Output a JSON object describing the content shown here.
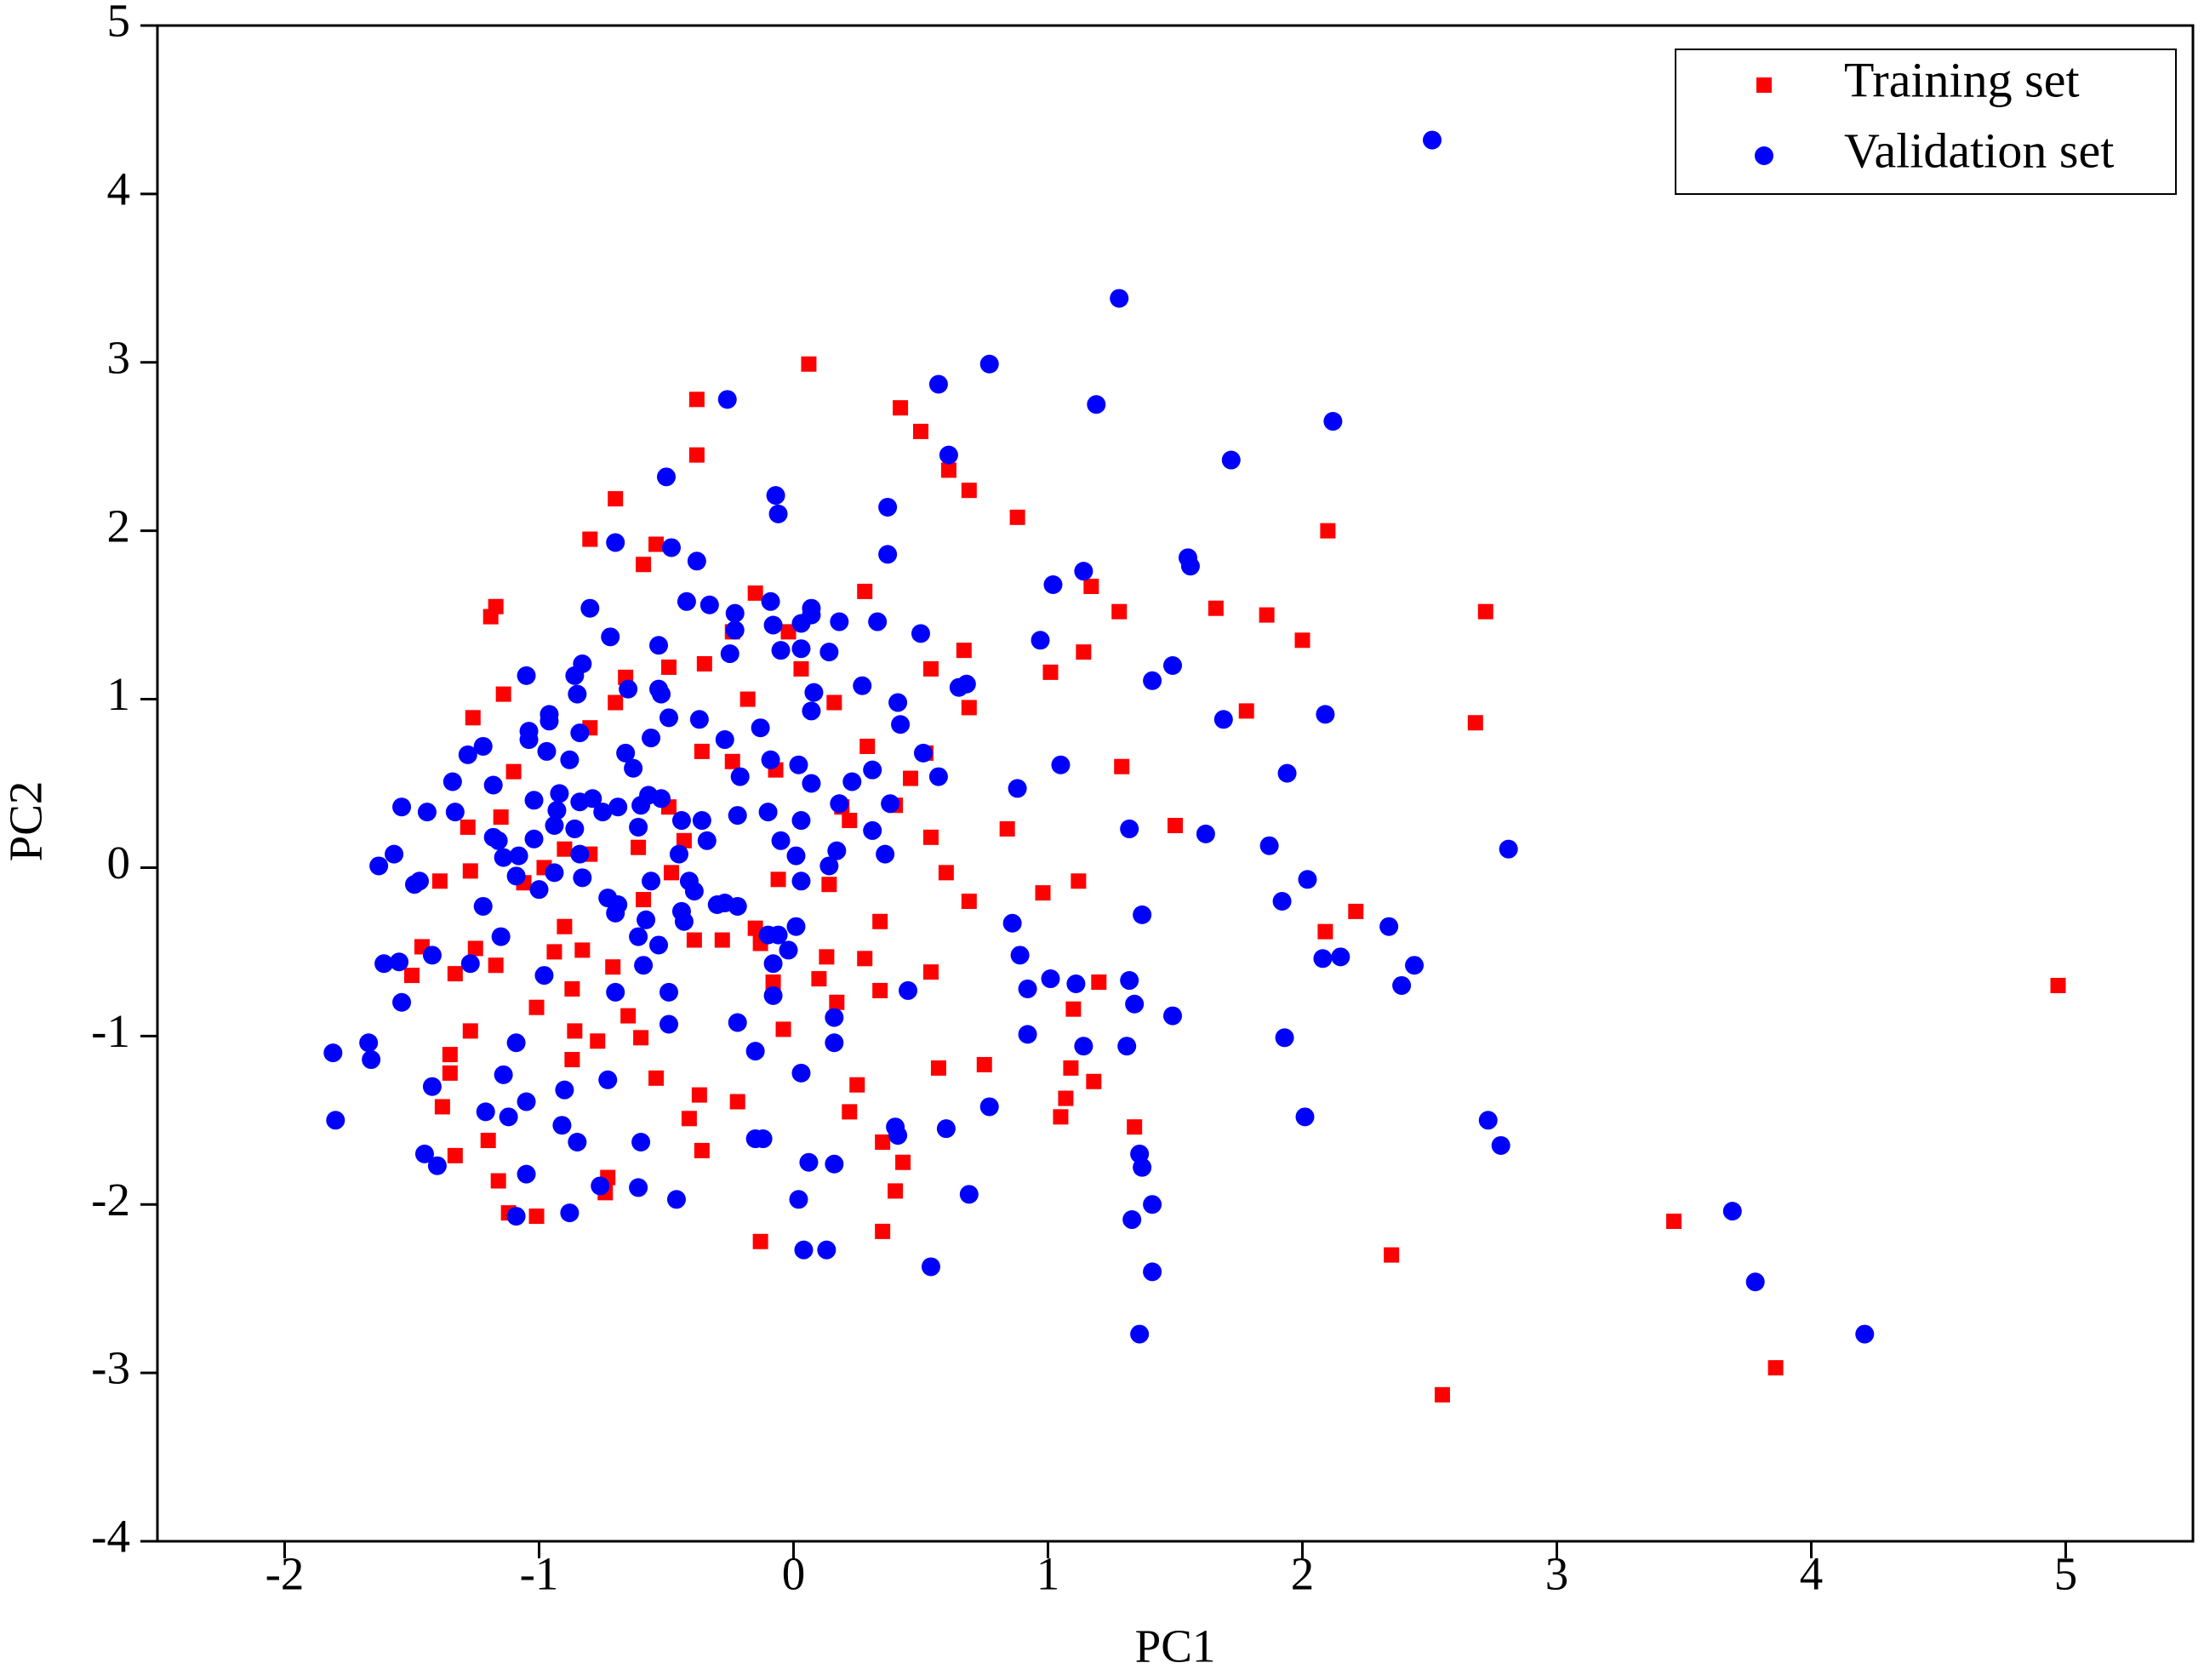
{
  "chart_data": {
    "type": "scatter",
    "x_label": "PC1",
    "y_label": "PC2",
    "xlim": [
      -2.5,
      5.5
    ],
    "ylim": [
      -4,
      5
    ],
    "xticks": [
      -2,
      -1,
      0,
      1,
      2,
      3,
      4,
      5
    ],
    "yticks": [
      -4,
      -3,
      -2,
      -1,
      0,
      1,
      2,
      3,
      4,
      5
    ],
    "grid": false,
    "legend_position": "upper right",
    "series": [
      {
        "name": "Training set",
        "color": "#ff0000",
        "marker": "square",
        "x": [
          0.06,
          -0.38,
          -0.38,
          0.42,
          0.5,
          0.61,
          0.69,
          0.88,
          -0.7,
          -0.8,
          -0.54,
          -0.59,
          -1.17,
          -1.19,
          2.1,
          2.72,
          2.68,
          1.66,
          1.86,
          2.0,
          1.28,
          1.17,
          1.14,
          1.01,
          1.78,
          1.29,
          1.5,
          0.84,
          1.12,
          0.98,
          2.09,
          2.21,
          1.2,
          1.1,
          1.09,
          1.18,
          1.07,
          1.05,
          1.34,
          2.35,
          2.55,
          3.46,
          3.86,
          4.97,
          0.69,
          0.67,
          0.54,
          0.54,
          0.6,
          0.69,
          0.54,
          0.57,
          0.75,
          0.25,
          0.22,
          0.35,
          0.43,
          0.4,
          0.35,
          -0.13,
          -0.36,
          -0.41,
          -0.37,
          -0.54,
          -0.22,
          -0.87,
          -0.77,
          -0.86,
          -0.6,
          -0.65,
          -0.74,
          -0.73,
          -1.12,
          -1.01,
          -1.16,
          -1.2,
          -1.33,
          -1.38,
          -1.35,
          -1.35,
          -1.27,
          -1.5,
          -1.46,
          -1.33,
          -1.17,
          -1.25,
          -1.39,
          -1.27,
          -1.28,
          -1.15,
          -1.26,
          -1.14,
          -1.1,
          -0.7,
          -0.66,
          -0.49,
          -0.35,
          -0.18,
          -0.15,
          0.28,
          -0.02,
          -0.24,
          0.03,
          0.16,
          0.29,
          0.19,
          0.22,
          -0.07,
          -0.24,
          -0.36,
          -0.43,
          -0.61,
          -0.8,
          -0.9,
          -0.98,
          -1.06,
          -0.9,
          -0.94,
          -0.83,
          -0.71,
          -1.01,
          -0.87,
          -0.59,
          -0.48,
          -0.39,
          -0.28,
          -0.15,
          -0.06,
          0.14,
          0.13,
          0.28,
          0.34,
          0.34,
          -0.04,
          -0.08,
          -0.13,
          0.1,
          0.17,
          0.4,
          0.46,
          0.52,
          -0.49,
          -0.8
        ],
        "values": [
          2.99,
          2.78,
          2.45,
          2.73,
          2.59,
          2.36,
          2.24,
          2.08,
          2.19,
          1.95,
          1.92,
          1.8,
          1.55,
          1.49,
          2.0,
          1.52,
          0.86,
          1.54,
          1.5,
          1.35,
          1.52,
          1.67,
          1.28,
          1.16,
          0.93,
          0.6,
          0.25,
          0.23,
          -0.08,
          -0.15,
          -0.38,
          -0.26,
          -0.68,
          -0.84,
          -1.19,
          -1.27,
          -1.37,
          -1.48,
          -1.54,
          -2.3,
          -3.13,
          -2.1,
          -2.97,
          -0.7,
          0.95,
          1.29,
          1.18,
          0.18,
          -0.03,
          -0.2,
          -0.62,
          -1.19,
          -1.17,
          -1.29,
          -1.45,
          -1.63,
          -1.75,
          -1.92,
          -2.16,
          -2.22,
          -1.68,
          -1.49,
          -1.35,
          -1.25,
          -1.39,
          -1.14,
          -1.03,
          -0.97,
          -1.01,
          -0.88,
          -1.93,
          -1.84,
          -2.05,
          -2.07,
          -1.86,
          -1.62,
          -1.71,
          -1.42,
          -1.22,
          -1.11,
          -0.97,
          -0.64,
          -0.47,
          -0.63,
          -0.58,
          -0.48,
          -0.08,
          -0.02,
          0.24,
          0.3,
          0.89,
          1.03,
          0.57,
          0.98,
          1.13,
          1.19,
          1.21,
          1.0,
          1.63,
          1.64,
          1.4,
          1.4,
          1.18,
          0.98,
          0.72,
          0.36,
          0.28,
          0.58,
          0.63,
          0.69,
          0.16,
          0.12,
          0.08,
          0.11,
          0,
          -0.09,
          -0.35,
          -0.5,
          -0.49,
          -0.59,
          -0.83,
          -0.72,
          -0.19,
          -0.03,
          -0.43,
          -0.43,
          -0.36,
          -0.07,
          -0.1,
          -0.53,
          -0.54,
          -0.73,
          -0.32,
          -0.96,
          -0.68,
          -0.45,
          -0.66,
          -0.8,
          0.37,
          0.53,
          0.68,
          0.36,
          0.83
        ]
      },
      {
        "name": "Validation set",
        "color": "#0000ff",
        "marker": "circle",
        "x": [
          2.51,
          1.28,
          0.77,
          0.57,
          -0.26,
          1.19,
          2.12,
          0.61,
          1.72,
          -0.07,
          -0.06,
          0.37,
          -0.5,
          -0.7,
          -0.48,
          0.37,
          -0.38,
          1.55,
          1.56,
          1.14,
          1.02,
          0.97,
          1.49,
          1.41,
          2.09,
          1.69,
          0.68,
          0.65,
          0.51,
          0.57,
          1.05,
          0.88,
          1.94,
          1.62,
          1.87,
          2.81,
          1.32,
          2.02,
          1.92,
          2.34,
          2.44,
          2.15,
          2.08,
          2.39,
          1.37,
          0.86,
          0.89,
          1.01,
          0.92,
          1.11,
          1.32,
          1.34,
          1.49,
          0.92,
          1.14,
          1.31,
          1.93,
          0.77,
          0.6,
          0.4,
          0.41,
          2.01,
          2.73,
          2.78,
          1.36,
          1.37,
          1.41,
          1.33,
          1.41,
          1.36,
          0.69,
          0.54,
          0.06,
          0.16,
          0.02,
          0.04,
          0.13,
          3.69,
          3.78,
          4.21,
          -0.15,
          -0.12,
          -0.15,
          0.03,
          0.16,
          0.16,
          0.45,
          -0.08,
          -0.22,
          -0.49,
          -0.49,
          -0.6,
          -0.46,
          -0.61,
          -0.76,
          -0.85,
          -0.91,
          -0.88,
          -1.05,
          -1.09,
          -1.12,
          -1.05,
          -1.14,
          -1.09,
          -1.21,
          -1.45,
          -1.4,
          -1.42,
          -1.81,
          -1.8,
          -1.67,
          -1.66,
          -1.54,
          -1.61,
          -1.55,
          -1.42,
          -1.27,
          -1.15,
          -1.22,
          -1.49,
          -1.47,
          -1.63,
          -1.57,
          -1.54,
          -1.44,
          -1.33,
          -1.34,
          -1.28,
          -1.22,
          -1.18,
          -1.16,
          -1.05,
          -1.04,
          -1.04,
          -0.97,
          -0.96,
          -0.96,
          -0.85,
          -0.83,
          -0.86,
          -0.8,
          -0.72,
          -0.65,
          -0.52,
          -0.53,
          -0.42,
          -0.33,
          -0.23,
          -0.23,
          -0.25,
          -0.09,
          -0.08,
          -0.05,
          0.07,
          0.07,
          0.03,
          0.18,
          0.03,
          0.14,
          0.33,
          0.08,
          0.07,
          0.27,
          0.41,
          0.42,
          0.5,
          -0.37,
          -0.27,
          -0.13,
          -0.09,
          -0.21,
          -0.22,
          -0.1,
          0.02,
          0.03,
          0.07,
          0.23,
          0.18,
          0.31,
          0.38,
          0.31,
          0.36,
          0.17,
          0.14,
          0.01,
          0.03,
          -0.05,
          -0.34,
          -0.45,
          -0.36,
          -0.41,
          -0.39,
          -0.27,
          -0.3,
          -0.1,
          -0.06,
          -0.08,
          -0.02,
          0.01,
          -0.22,
          -0.44,
          -0.56,
          -0.58,
          -0.61,
          -0.53,
          -0.59,
          -0.69,
          -0.73,
          -0.83,
          -0.84,
          -0.86,
          -0.79,
          -0.84,
          -0.93,
          -0.94,
          -1.02,
          -1.08,
          -1.14,
          -1.18,
          -1.09,
          -1.0,
          -0.94,
          -0.98,
          -0.7,
          -0.7,
          -0.73,
          -0.9,
          -0.43,
          -0.66,
          -0.63,
          -0.57,
          -0.6,
          -0.52,
          -0.44,
          -0.69,
          -0.61,
          -0.49,
          -0.56,
          -0.53,
          -0.84,
          -0.88,
          -0.92,
          -1.02,
          -0.75
        ],
        "values": [
          4.32,
          3.38,
          2.99,
          2.87,
          2.78,
          2.75,
          2.65,
          2.45,
          2.42,
          2.21,
          2.1,
          2.14,
          2.32,
          1.93,
          1.9,
          1.86,
          1.82,
          1.84,
          1.79,
          1.76,
          1.68,
          1.35,
          1.2,
          1.11,
          0.91,
          0.88,
          1.09,
          1.07,
          0.68,
          0.54,
          0.61,
          0.47,
          0.56,
          0.2,
          0.13,
          0.11,
          0.23,
          -0.07,
          -0.2,
          -0.35,
          -0.58,
          -0.53,
          -0.54,
          -0.7,
          -0.28,
          -0.33,
          -0.52,
          -0.66,
          -0.72,
          -0.69,
          -0.67,
          -0.81,
          -0.88,
          -0.99,
          -1.06,
          -1.06,
          -1.01,
          -1.42,
          -1.55,
          -1.54,
          -1.59,
          -1.48,
          -1.5,
          -1.65,
          -1.7,
          -1.78,
          -2.0,
          -2.09,
          -2.4,
          -2.77,
          -1.94,
          -2.37,
          -1.75,
          -1.76,
          -1.97,
          -2.27,
          -2.27,
          -2.04,
          -2.46,
          -2.77,
          -1.61,
          -1.61,
          -1.09,
          -1.22,
          -1.04,
          -0.89,
          -0.73,
          -0.76,
          -0.92,
          -0.74,
          -0.93,
          -1.63,
          -1.97,
          -1.9,
          -1.89,
          -1.63,
          -1.53,
          -2.05,
          -1.82,
          -2.07,
          -1.48,
          -1.39,
          -1.23,
          -1.04,
          -1.45,
          -1.7,
          -1.77,
          -1.3,
          -1.1,
          -1.5,
          -1.04,
          -1.14,
          -0.8,
          -0.57,
          -0.56,
          -0.52,
          -0.57,
          -0.41,
          -0.23,
          -0.1,
          -0.08,
          0.01,
          0.08,
          0.36,
          0.33,
          0.33,
          0.51,
          0.67,
          0.72,
          0.49,
          0.16,
          1.14,
          0.76,
          0.81,
          0.69,
          0.87,
          0.91,
          1.03,
          1.21,
          1.14,
          1.54,
          1.37,
          1.06,
          1.03,
          1.32,
          1.58,
          1.56,
          1.51,
          1.41,
          1.27,
          1.58,
          1.44,
          1.29,
          1.54,
          1.5,
          1.45,
          1.46,
          1.3,
          1.28,
          1.46,
          1.04,
          0.93,
          1.08,
          0.98,
          0.85,
          1.39,
          0.88,
          0.76,
          0.83,
          0.64,
          0.54,
          0.31,
          0.33,
          0.61,
          0.28,
          0.5,
          0.51,
          0.38,
          0.58,
          0.38,
          0.22,
          0.08,
          0.1,
          0.01,
          0.07,
          -0.08,
          0.16,
          0.16,
          0.08,
          0.28,
          -0.08,
          -0.14,
          -0.21,
          -0.22,
          -0.4,
          -0.4,
          -0.57,
          -0.49,
          -0.35,
          -0.23,
          -0.26,
          -0.08,
          -0.31,
          -0.41,
          -0.46,
          -0.58,
          -0.22,
          -0.18,
          -0.06,
          0.08,
          0.23,
          0.41,
          0.39,
          0.34,
          0.25,
          0.17,
          0.07,
          0.06,
          0.18,
          -0.05,
          -0.13,
          -0.03,
          -0.64,
          -0.27,
          -0.74,
          -1.26,
          -1.32,
          -0.32,
          0.68,
          0.59,
          0.43,
          0.37,
          0.41,
          0.28,
          0.36,
          0.24,
          0.89,
          0.77,
          1.06,
          0.8,
          0.64,
          0.44,
          0.4,
          0.33
        ]
      }
    ]
  }
}
